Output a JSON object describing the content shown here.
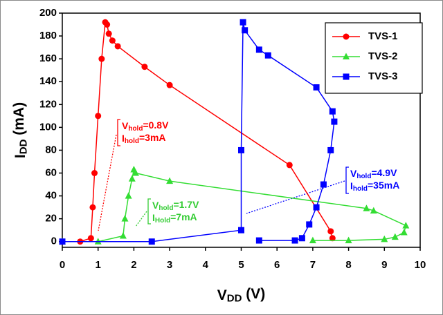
{
  "chart_data": {
    "type": "line",
    "xlabel": [
      "V",
      "DD",
      " (V)"
    ],
    "ylabel": [
      "I",
      "DD",
      " (mA)"
    ],
    "xlim": [
      0,
      10
    ],
    "xticks": [
      0,
      1,
      2,
      3,
      4,
      5,
      6,
      7,
      8,
      9,
      10
    ],
    "ylim": [
      -5,
      200
    ],
    "yticks": [
      0,
      20,
      40,
      60,
      80,
      100,
      120,
      140,
      160,
      180,
      200
    ],
    "grid": false,
    "legend": "top-right",
    "series": [
      {
        "name": "TVS-1",
        "color": "#ff0000",
        "marker": "circle",
        "x": [
          0,
          0.5,
          0.8,
          0.85,
          0.9,
          1.0,
          1.1,
          1.2,
          1.25,
          1.3,
          1.4,
          1.55,
          2.3,
          3.0,
          6.35,
          7.5,
          7.55
        ],
        "values": [
          0,
          0,
          3,
          30,
          60,
          110,
          160,
          192,
          190,
          182,
          176,
          171,
          153,
          137,
          67,
          9,
          3
        ]
      },
      {
        "name": "TVS-2",
        "color": "#33dd33",
        "marker": "triangle",
        "x": [
          0,
          1.0,
          1.7,
          1.75,
          1.85,
          1.95,
          2.0,
          2.05,
          3.0,
          8.5,
          8.7,
          9.6,
          9.55,
          9.3,
          9.0,
          8.0,
          7.0
        ],
        "values": [
          0,
          0,
          5,
          20,
          40,
          55,
          63,
          60,
          53,
          29,
          27,
          14,
          8,
          4,
          2,
          1,
          1
        ]
      },
      {
        "name": "TVS-3",
        "color": "#0000ff",
        "marker": "square",
        "x": [
          0,
          2.5,
          5.0,
          5.0,
          5.05,
          5.1,
          5.5,
          5.75,
          7.1,
          7.55,
          7.6,
          7.5,
          7.3,
          7.1,
          6.9,
          6.7,
          6.5,
          5.5
        ],
        "values": [
          0,
          0,
          10,
          80,
          192,
          185,
          168,
          163,
          135,
          114,
          105,
          80,
          50,
          30,
          15,
          3,
          1,
          1
        ]
      }
    ],
    "annotations": [
      {
        "color": "#ff0000",
        "lines": [
          [
            "V",
            "hold",
            "=0.8V"
          ],
          [
            "I",
            "hold",
            "=3mA"
          ]
        ]
      },
      {
        "color": "#33cc33",
        "lines": [
          [
            "V",
            "hold",
            "=1.7V"
          ],
          [
            "I",
            "Hold",
            "=7mA"
          ]
        ]
      },
      {
        "color": "#0000ff",
        "lines": [
          [
            "V",
            "hold",
            "=4.9V"
          ],
          [
            "I",
            "hold",
            "=35mA"
          ]
        ]
      }
    ]
  }
}
